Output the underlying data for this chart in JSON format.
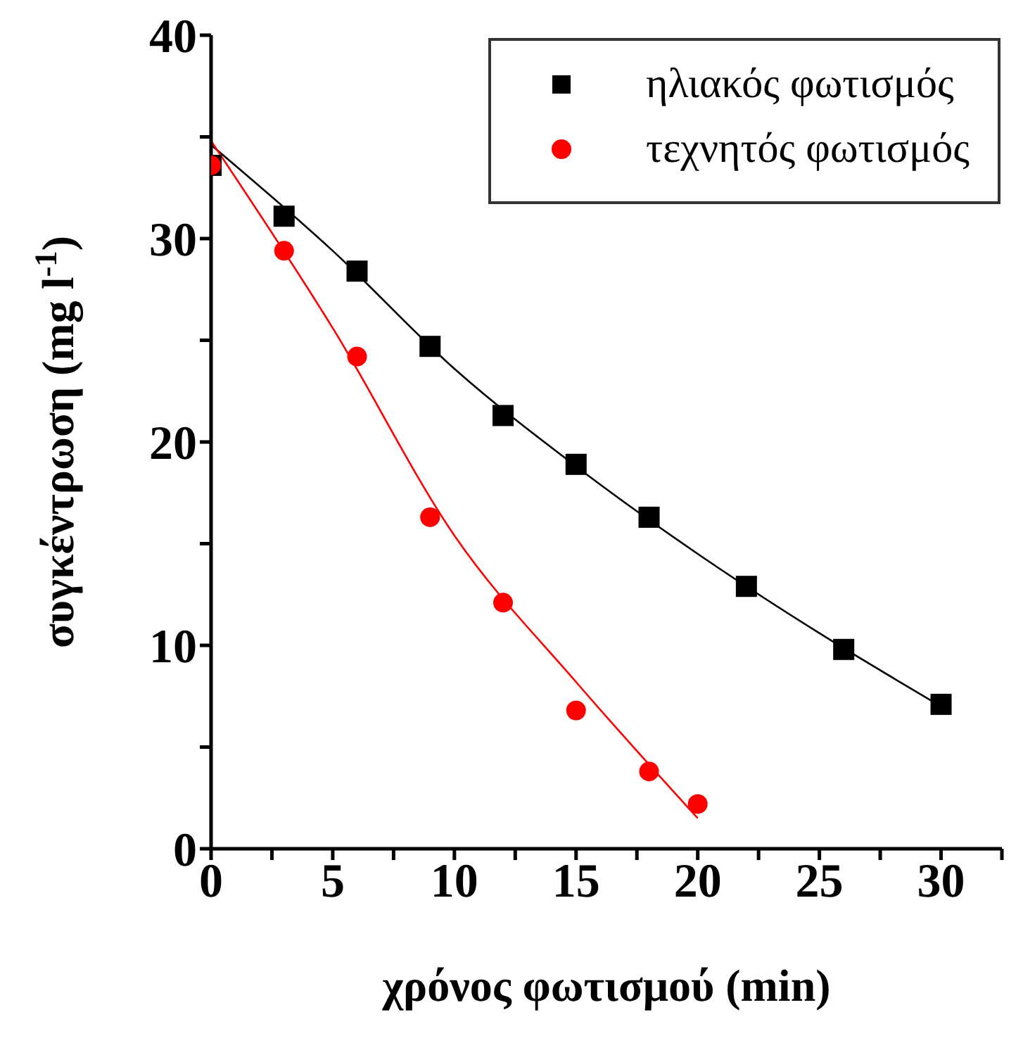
{
  "chart_data": {
    "type": "scatter",
    "xlabel": "χρόνος φωτισμού (min)",
    "ylabel": "συγκέντρωση (mg l$^{-1}$)",
    "xlim": [
      0,
      32.5
    ],
    "ylim": [
      0,
      40
    ],
    "xticks": [
      0,
      {
        "value": 2.5,
        "label": null
      },
      5,
      {
        "value": 7.5,
        "label": null
      },
      10,
      {
        "value": 12.5,
        "label": null
      },
      15,
      {
        "value": 17.5,
        "label": null
      },
      20,
      {
        "value": 22.5,
        "label": null
      },
      25,
      {
        "value": 27.5,
        "label": null
      },
      30,
      {
        "value": 32.5,
        "label": null
      }
    ],
    "yticks": [
      0,
      {
        "value": 5,
        "label": null
      },
      10,
      {
        "value": 15,
        "label": null
      },
      20,
      {
        "value": 25,
        "label": null
      },
      30,
      {
        "value": 35,
        "label": null
      },
      40
    ],
    "grid": false,
    "legend": "top right",
    "series": [
      {
        "name": "ηλιακός φωτισμός",
        "marker": "square",
        "color": "#000000",
        "x": [
          0,
          3,
          6,
          9,
          12,
          15,
          18,
          22,
          26,
          30
        ],
        "values": [
          33.6,
          31.1,
          28.4,
          24.7,
          21.3,
          18.9,
          16.3,
          12.9,
          9.8,
          7.1
        ]
      },
      {
        "name": "τεχνητός φωτισμός",
        "marker": "circle",
        "color": "#ff0000",
        "x": [
          0,
          3,
          6,
          9,
          12,
          15,
          18,
          20
        ],
        "values": [
          33.6,
          29.4,
          24.2,
          16.3,
          12.1,
          6.8,
          3.8,
          2.2
        ]
      },
      {
        "type": "line",
        "marker": "none",
        "line_style": "solid",
        "color": "#000000",
        "x": [
          0,
          5,
          10,
          15,
          20,
          25,
          30
        ],
        "values": [
          34.6,
          29.4,
          23.6,
          18.8,
          14.5,
          10.6,
          7.0
        ]
      },
      {
        "type": "line",
        "marker": "none",
        "line_style": "solid",
        "color": "#ff0000",
        "x": [
          0,
          5,
          10,
          15,
          20
        ],
        "values": [
          34.8,
          25.6,
          15.4,
          8.2,
          1.5
        ]
      }
    ]
  }
}
